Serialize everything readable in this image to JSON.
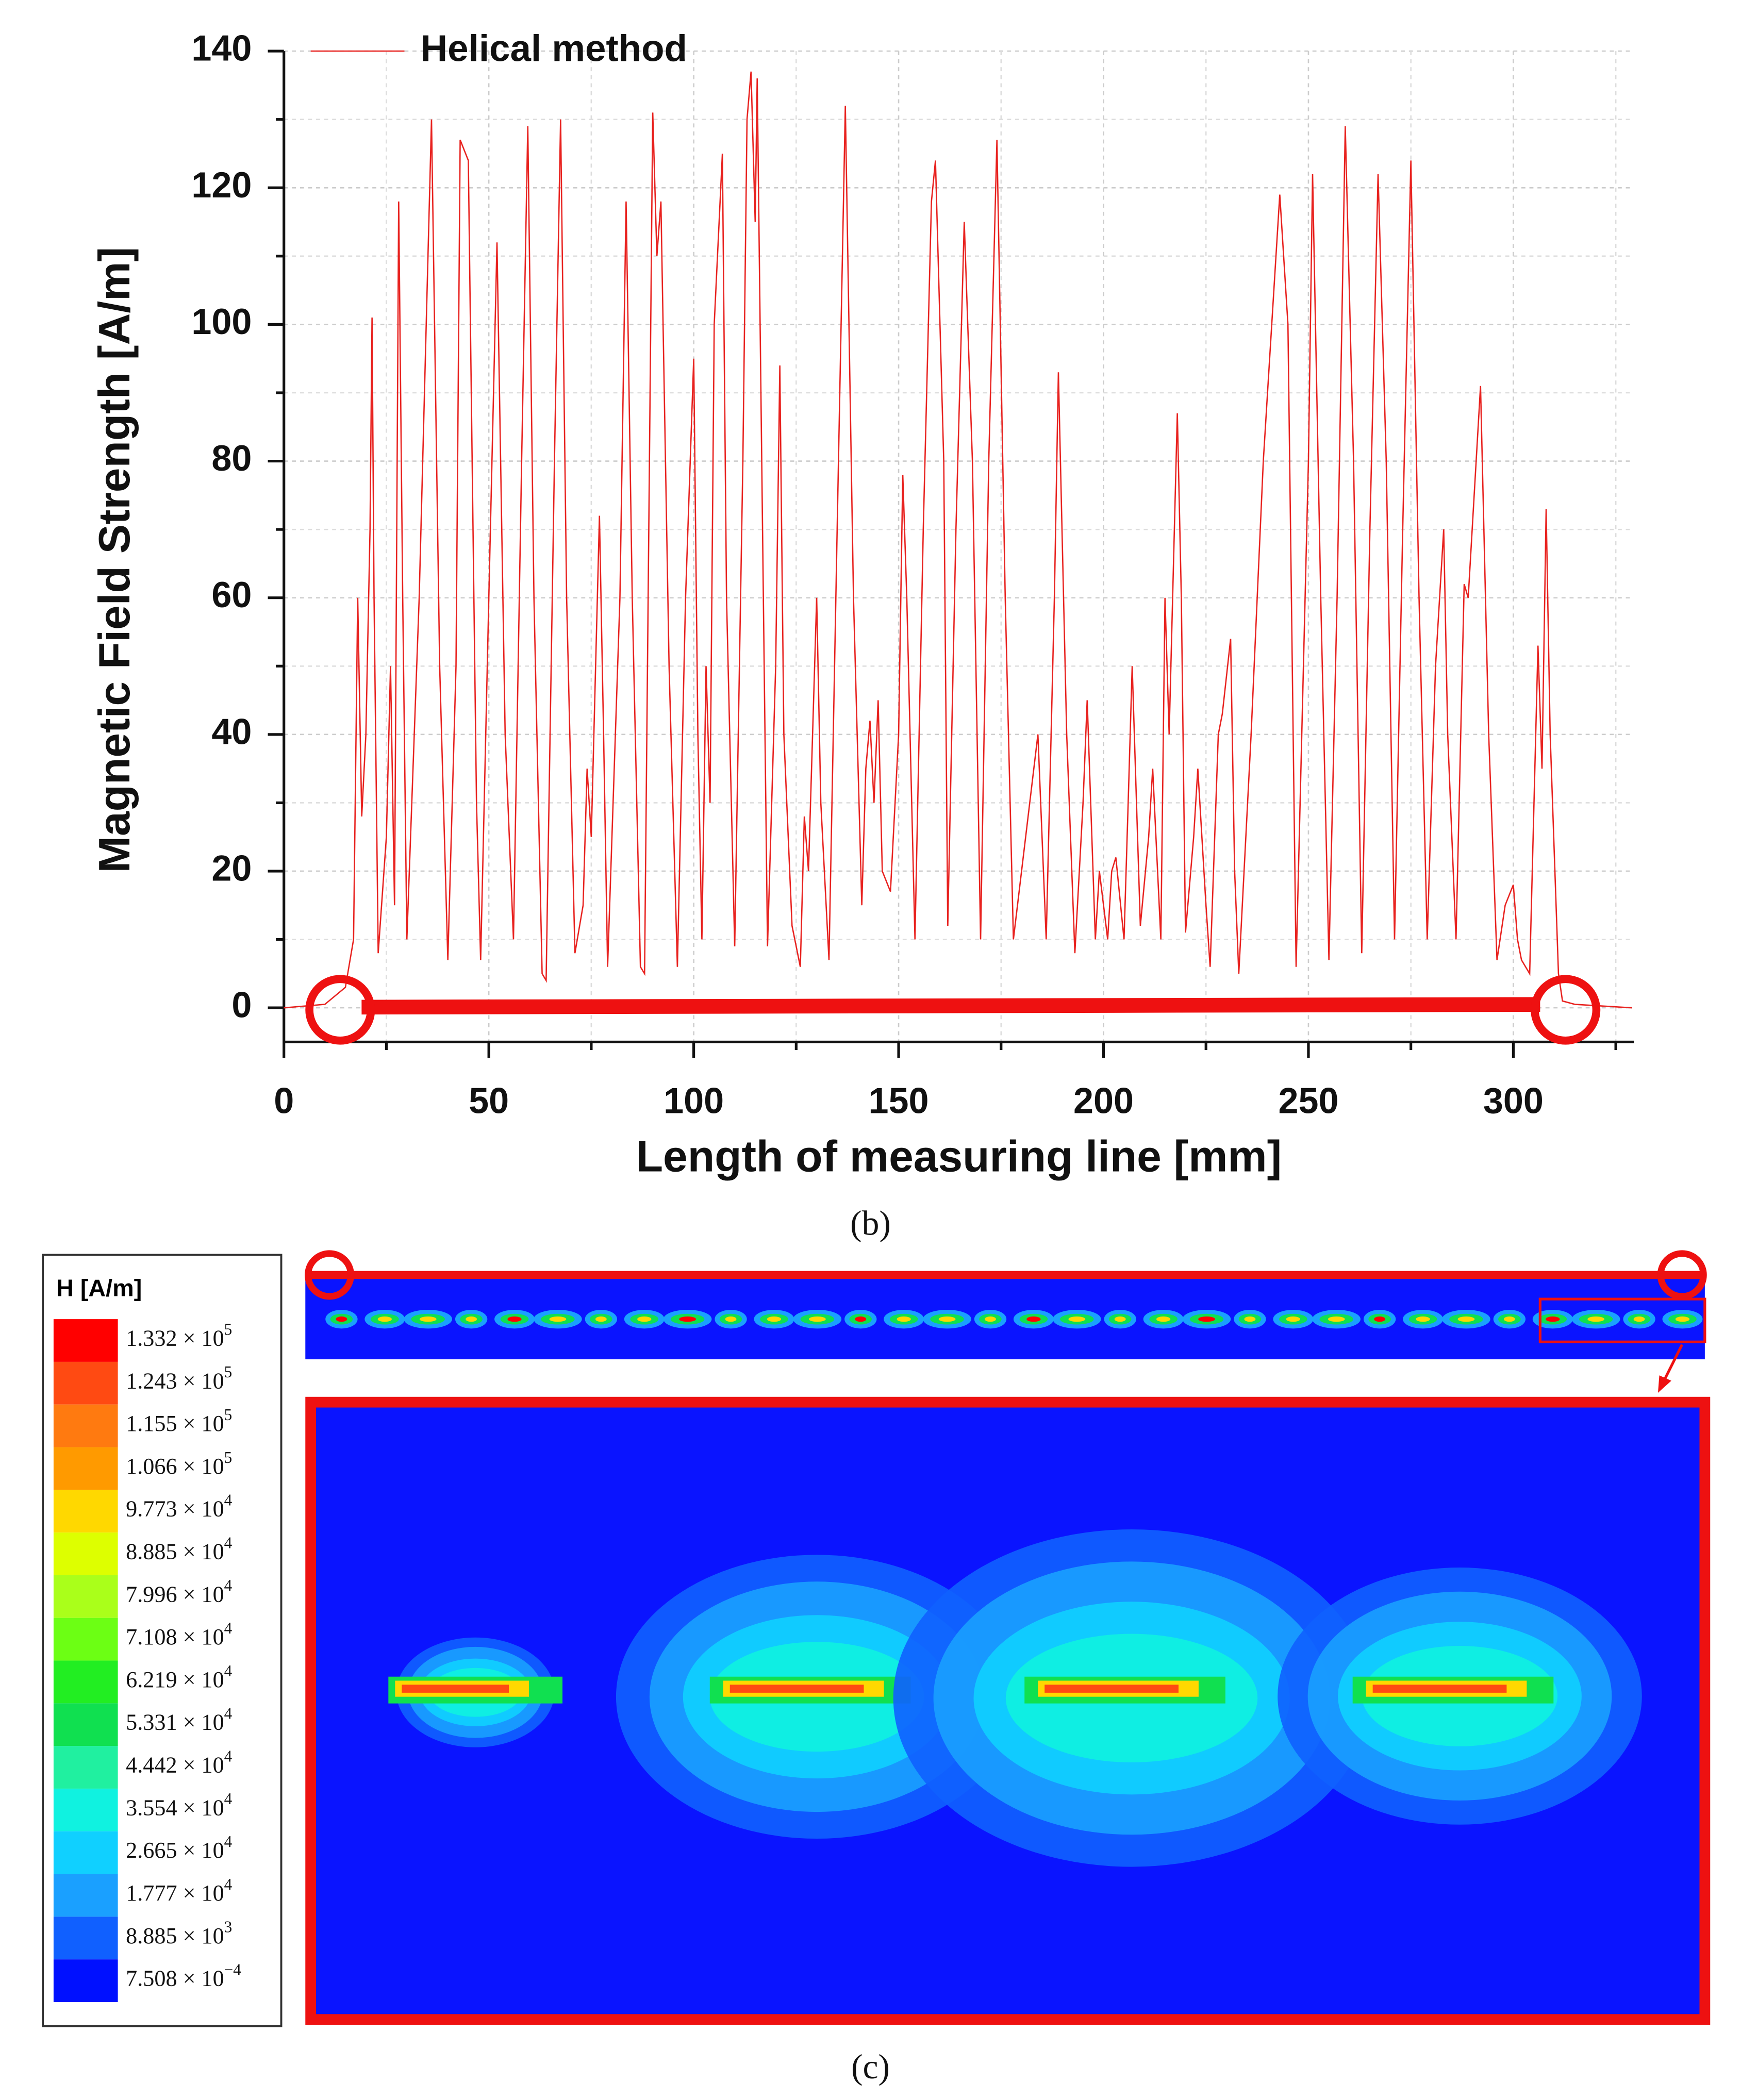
{
  "chart_data": {
    "type": "line",
    "x_label": "Length of measuring line [mm]",
    "y_label": "Magnetic Field Strength [A/m]",
    "xlim": [
      0,
      330
    ],
    "ylim": [
      -5,
      140
    ],
    "xticks": [
      0,
      50,
      100,
      150,
      200,
      250,
      300
    ],
    "yticks": [
      0,
      20,
      40,
      60,
      80,
      100,
      120,
      140
    ],
    "grid": true,
    "legend": "top-left",
    "series": [
      {
        "name": "Helical method",
        "color": "#e8221f",
        "x": [
          0,
          10,
          15,
          17,
          18,
          19,
          20,
          21,
          21.5,
          22,
          23,
          25,
          26,
          27,
          28,
          29,
          30,
          33,
          36,
          38,
          40,
          42,
          43,
          45,
          47,
          48,
          50,
          52,
          54,
          56,
          58,
          59.5,
          61,
          63,
          64,
          66,
          67.5,
          69,
          71,
          73,
          74,
          75,
          77,
          78,
          79,
          82,
          83.5,
          85,
          87,
          88,
          90,
          91,
          92,
          94,
          96,
          98,
          100,
          101,
          102,
          103,
          104,
          105,
          107,
          108,
          110,
          112,
          113,
          114,
          115,
          115.5,
          117,
          118,
          120,
          121,
          122,
          124,
          126,
          127,
          128,
          130,
          131,
          133,
          135,
          137,
          139,
          141,
          142,
          143,
          144,
          145,
          146,
          148,
          150,
          151,
          152,
          154,
          156,
          158,
          159,
          161,
          162,
          164,
          166,
          168,
          170,
          172,
          174,
          176,
          178,
          180,
          182,
          184,
          186,
          188,
          189,
          191,
          193,
          195,
          196,
          198,
          199,
          201,
          202,
          203,
          205,
          206,
          207,
          209,
          211,
          212,
          214,
          215,
          216,
          218,
          219,
          220,
          222,
          223,
          225,
          226,
          228,
          229,
          231,
          232,
          233,
          236,
          239,
          243,
          245,
          247,
          250,
          251,
          253,
          255,
          257,
          259,
          261,
          263,
          265,
          267,
          269,
          271,
          273,
          275,
          277,
          279,
          281,
          283,
          284,
          286,
          288,
          289,
          292,
          294,
          296,
          298,
          300,
          301,
          302,
          304,
          306,
          307,
          308,
          309,
          311,
          312,
          315,
          329
        ],
        "values": [
          0,
          0.5,
          3,
          10,
          60,
          28,
          40,
          70,
          101,
          60,
          8,
          25,
          50,
          15,
          118,
          60,
          10,
          60,
          130,
          50,
          7,
          50,
          127,
          124,
          30,
          7,
          60,
          112,
          40,
          10,
          80,
          129,
          60,
          5,
          4,
          80,
          130,
          60,
          8,
          15,
          35,
          25,
          72,
          40,
          6,
          60,
          118,
          60,
          6,
          5,
          131,
          110,
          118,
          50,
          6,
          60,
          95,
          40,
          10,
          50,
          30,
          100,
          125,
          60,
          9,
          80,
          130,
          137,
          115,
          136,
          60,
          9,
          50,
          94,
          40,
          12,
          6,
          28,
          20,
          60,
          30,
          7,
          70,
          132,
          60,
          15,
          35,
          42,
          30,
          45,
          20,
          17,
          40,
          78,
          60,
          10,
          70,
          118,
          124,
          80,
          12,
          70,
          115,
          80,
          10,
          80,
          127,
          60,
          10,
          20,
          30,
          40,
          10,
          60,
          93,
          40,
          8,
          30,
          45,
          10,
          20,
          10,
          20,
          22,
          10,
          30,
          50,
          12,
          25,
          35,
          10,
          60,
          40,
          87,
          60,
          11,
          25,
          35,
          15,
          6,
          40,
          43,
          54,
          20,
          5,
          40,
          80,
          119,
          100,
          6,
          80,
          122,
          60,
          7,
          60,
          129,
          80,
          8,
          70,
          122,
          80,
          10,
          70,
          124,
          60,
          10,
          50,
          70,
          40,
          10,
          62,
          60,
          91,
          40,
          7,
          15,
          18,
          10,
          7,
          5,
          53,
          35,
          73,
          40,
          5,
          1,
          0.5,
          0
        ]
      }
    ]
  },
  "captions": [
    "(b)",
    "(c)"
  ],
  "colorbar": {
    "title": "H [A/m]",
    "levels": [
      {
        "base": "1.332 × 10",
        "exp": "5",
        "color": "#ff0000"
      },
      {
        "base": "1.243 × 10",
        "exp": "5",
        "color": "#ff4a12"
      },
      {
        "base": "1.155 × 10",
        "exp": "5",
        "color": "#ff7a10"
      },
      {
        "base": "1.066 × 10",
        "exp": "5",
        "color": "#ff9a00"
      },
      {
        "base": "9.773 × 10",
        "exp": "4",
        "color": "#ffd800"
      },
      {
        "base": "8.885 × 10",
        "exp": "4",
        "color": "#ddff00"
      },
      {
        "base": "7.996 × 10",
        "exp": "4",
        "color": "#aaff1a"
      },
      {
        "base": "7.108 × 10",
        "exp": "4",
        "color": "#6cff14"
      },
      {
        "base": "6.219 × 10",
        "exp": "4",
        "color": "#22ee22"
      },
      {
        "base": "5.331 × 10",
        "exp": "4",
        "color": "#10e050"
      },
      {
        "base": "4.442 × 10",
        "exp": "4",
        "color": "#20f0a0"
      },
      {
        "base": "3.554 × 10",
        "exp": "4",
        "color": "#10f2e0"
      },
      {
        "base": "2.665 × 10",
        "exp": "4",
        "color": "#10d0ff"
      },
      {
        "base": "1.777 × 10",
        "exp": "4",
        "color": "#1aa0ff"
      },
      {
        "base": "8.885 × 10",
        "exp": "3",
        "color": "#1060ff"
      },
      {
        "base": "7.508 × 10",
        "exp": "−4",
        "color": "#0010ff"
      }
    ]
  }
}
